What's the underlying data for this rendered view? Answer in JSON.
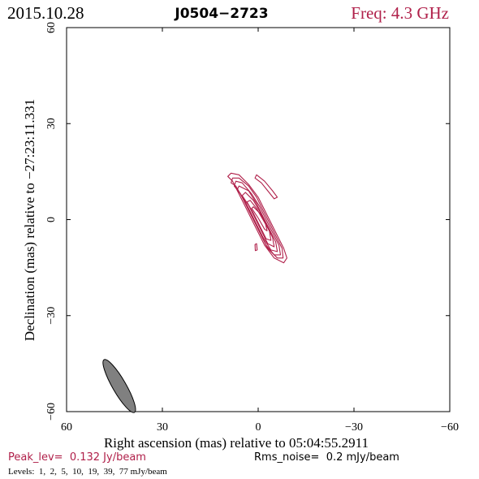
{
  "header": {
    "date": "2015.10.28",
    "source": "J0504−2723",
    "freq": "Freq: 4.3 GHz"
  },
  "footer": {
    "peak": "Peak_lev=  0.132 Jy/beam",
    "rms": "Rms_noise=  0.2 mJy/beam",
    "levels": "Levels:  1,  2,  5,  10,  19,  39,  77 mJy/beam"
  },
  "colors": {
    "accent": "#b0204a",
    "contour": "#b0204a",
    "beam": "#808080",
    "text": "#000000"
  },
  "chart_data": {
    "type": "contour",
    "xlabel": "Right ascension (mas) relative to 05:04:55.2911",
    "ylabel": "Declination (mas) relative to −27:23:11.331",
    "xlim": [
      60,
      -60
    ],
    "ylim": [
      -60,
      60
    ],
    "xticks": [
      60,
      30,
      0,
      -30,
      -60
    ],
    "yticks": [
      60,
      30,
      0,
      -30,
      -60
    ],
    "xtick_labels": [
      "60",
      "30",
      "0",
      "−30",
      "−60"
    ],
    "ytick_labels": [
      "60",
      "30",
      "0",
      "−30",
      "−60"
    ],
    "levels_mJy": [
      1,
      2,
      5,
      10,
      19,
      39,
      77
    ],
    "peak_Jy": 0.132,
    "rms_mJy": 0.2,
    "source_contours": [
      {
        "level": 1,
        "points": [
          [
            9.5,
            13.5
          ],
          [
            8,
            12
          ],
          [
            6,
            8
          ],
          [
            4,
            4
          ],
          [
            2,
            0
          ],
          [
            0,
            -4
          ],
          [
            -2,
            -8
          ],
          [
            -5,
            -12
          ],
          [
            -8,
            -13.5
          ],
          [
            -9,
            -12
          ],
          [
            -8,
            -9
          ],
          [
            -6,
            -5
          ],
          [
            -4,
            -1
          ],
          [
            -2,
            3
          ],
          [
            0,
            7
          ],
          [
            3,
            11
          ],
          [
            6,
            14
          ],
          [
            8.5,
            14.5
          ]
        ]
      },
      {
        "level": 2,
        "points": [
          [
            8.5,
            11.5
          ],
          [
            7,
            10.5
          ],
          [
            5,
            7
          ],
          [
            3,
            3
          ],
          [
            1,
            -1
          ],
          [
            -1,
            -5
          ],
          [
            -3,
            -9
          ],
          [
            -6,
            -12
          ],
          [
            -7.8,
            -12
          ],
          [
            -7.5,
            -9
          ],
          [
            -5.5,
            -5
          ],
          [
            -3.5,
            -1
          ],
          [
            -1.5,
            3
          ],
          [
            0.5,
            7
          ],
          [
            3,
            10.5
          ],
          [
            6,
            13
          ],
          [
            8,
            13
          ]
        ]
      },
      {
        "level": 5,
        "points": [
          [
            7.5,
            10.5
          ],
          [
            5.5,
            8
          ],
          [
            3.5,
            4
          ],
          [
            1.5,
            0
          ],
          [
            -0.5,
            -4
          ],
          [
            -2.5,
            -8
          ],
          [
            -5,
            -11
          ],
          [
            -7,
            -11
          ],
          [
            -6.5,
            -8
          ],
          [
            -4.5,
            -4
          ],
          [
            -2.5,
            0
          ],
          [
            -0.5,
            4
          ],
          [
            2,
            8
          ],
          [
            5,
            11.5
          ],
          [
            7,
            12
          ]
        ]
      },
      {
        "level": 10,
        "points": [
          [
            6.5,
            9.5
          ],
          [
            4.5,
            6.5
          ],
          [
            2.5,
            2.5
          ],
          [
            0.5,
            -1.5
          ],
          [
            -1.5,
            -5.5
          ],
          [
            -4,
            -9.5
          ],
          [
            -6,
            -10
          ],
          [
            -5.5,
            -7
          ],
          [
            -3.5,
            -3
          ],
          [
            -1.5,
            1
          ],
          [
            0.5,
            5
          ],
          [
            3,
            9
          ],
          [
            6,
            10.5
          ]
        ]
      },
      {
        "level": 19,
        "points": [
          [
            5,
            7.5
          ],
          [
            3,
            4.5
          ],
          [
            1,
            0.5
          ],
          [
            -1,
            -3.5
          ],
          [
            -3,
            -7.5
          ],
          [
            -5,
            -8.5
          ],
          [
            -4.5,
            -5.5
          ],
          [
            -2.5,
            -1.5
          ],
          [
            -0.5,
            2.5
          ],
          [
            1.5,
            6
          ],
          [
            4,
            8.5
          ]
        ]
      },
      {
        "level": 39,
        "points": [
          [
            3.5,
            5.5
          ],
          [
            1.5,
            2
          ],
          [
            -0.5,
            -2
          ],
          [
            -2.5,
            -6
          ],
          [
            -4,
            -6.5
          ],
          [
            -3.5,
            -3.5
          ],
          [
            -1.5,
            0
          ],
          [
            0.5,
            3.5
          ],
          [
            2.5,
            6
          ]
        ]
      },
      {
        "level": 77,
        "points": [
          [
            2,
            3.5
          ],
          [
            0,
            0.5
          ],
          [
            -2,
            -3
          ],
          [
            -2.8,
            -3.5
          ],
          [
            -2.2,
            -1
          ],
          [
            -0.5,
            2
          ],
          [
            1.5,
            4
          ]
        ]
      },
      {
        "level": 1,
        "points": [
          [
            0.5,
            14
          ],
          [
            -2,
            12
          ],
          [
            -4.5,
            9
          ],
          [
            -6,
            7
          ],
          [
            -5,
            6.5
          ],
          [
            -3,
            9
          ],
          [
            -1,
            11.5
          ],
          [
            1,
            13
          ]
        ]
      },
      {
        "level": 1,
        "points": [
          [
            0.5,
            -7.5
          ],
          [
            0.3,
            -9.5
          ],
          [
            0.9,
            -9.7
          ],
          [
            1,
            -7.8
          ]
        ]
      }
    ],
    "beam": {
      "x": 43.5,
      "y": -52,
      "major_mas": 19,
      "minor_mas": 4.2,
      "pa_deg": -30
    }
  }
}
